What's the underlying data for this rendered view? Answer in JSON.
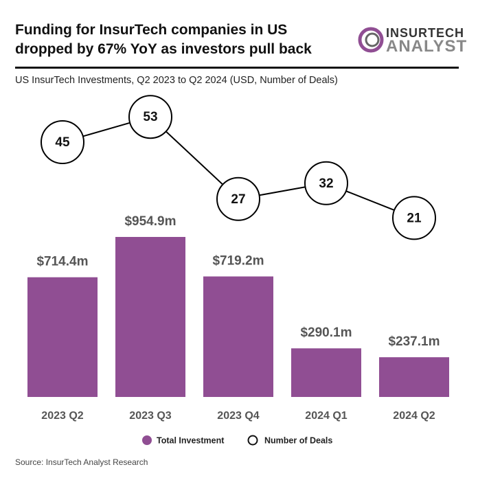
{
  "chart_data": {
    "type": "bar-line",
    "title": "Funding for InsurTech companies in US dropped by 67% YoY as investors pull back",
    "subtitle": "US InsurTech Investments, Q2 2023 to Q2 2024 (USD, Number of Deals)",
    "logo": {
      "top": "INSURTECH",
      "bottom": "ANALYST"
    },
    "source": "Source: InsurTech Analyst Research",
    "categories": [
      "2023 Q2",
      "2023 Q3",
      "2023 Q4",
      "2024 Q1",
      "2024 Q2"
    ],
    "series": [
      {
        "name": "Total Investment",
        "type": "bar",
        "color": "#904e93",
        "values": [
          714.4,
          954.9,
          719.2,
          290.1,
          237.1
        ],
        "value_labels": [
          "$714.4m",
          "$954.9m",
          "$719.2m",
          "$290.1m",
          "$237.1m"
        ]
      },
      {
        "name": "Number of Deals",
        "type": "line",
        "color": "#000000",
        "values": [
          45,
          53,
          27,
          32,
          21
        ]
      }
    ]
  }
}
